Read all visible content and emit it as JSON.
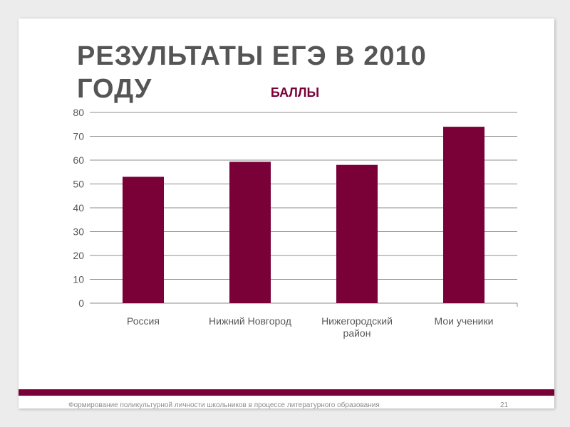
{
  "slide": {
    "title": "РЕЗУЛЬТАТЫ ЕГЭ В 2010 ГОДУ",
    "footer": "Формирование поликультурной личности школьников в процессе литературного образования",
    "page_number": "21"
  },
  "chart_data": {
    "type": "bar",
    "title": "БАЛЛЫ",
    "categories": [
      "Россия",
      "Нижний Новгород",
      "Нижегородский район",
      "Мои ученики"
    ],
    "category_lines": [
      [
        "Россия"
      ],
      [
        "Нижний Новгород"
      ],
      [
        "Нижегородский",
        "район"
      ],
      [
        "Мои ученики"
      ]
    ],
    "series": [
      {
        "values": [
          53,
          59.3,
          58,
          74
        ]
      }
    ],
    "yticks": [
      "0",
      "10",
      "20",
      "30",
      "40",
      "50",
      "60",
      "70",
      "80"
    ],
    "ylim": [
      0,
      80
    ],
    "grid": true,
    "legend": "none",
    "bar_color": "#7a0038",
    "grid_color": "#8c8c8c"
  }
}
